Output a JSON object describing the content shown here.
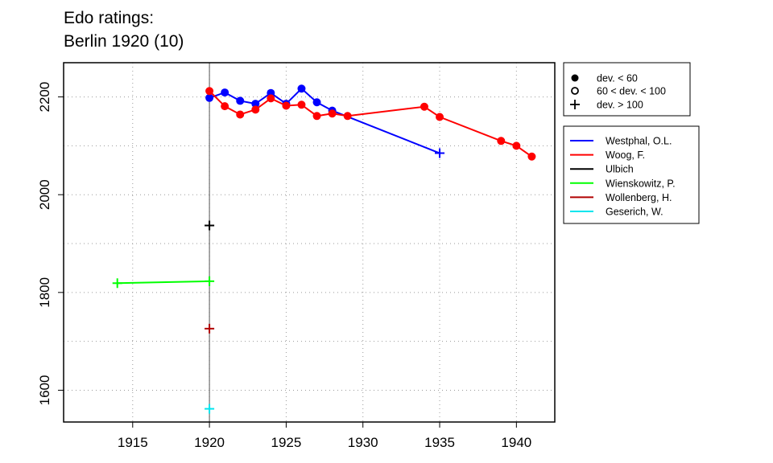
{
  "title": {
    "line1": "Edo ratings:",
    "line2": "Berlin 1920 (10)"
  },
  "symbol_legend": [
    {
      "symbol": "filled-circle",
      "label": "dev. < 60"
    },
    {
      "symbol": "open-circle",
      "label": "60 < dev. < 100"
    },
    {
      "symbol": "plus",
      "label": "dev. > 100"
    }
  ],
  "chart_data": {
    "type": "line",
    "title": "Edo ratings:\nBerlin 1920 (10)",
    "xlabel": "",
    "ylabel": "",
    "xlim": [
      1910.5,
      1942.5
    ],
    "ylim": [
      1535,
      2270
    ],
    "x_ticks": [
      1915,
      1920,
      1925,
      1930,
      1935,
      1940
    ],
    "y_ticks": [
      1600,
      1800,
      2000,
      2200
    ],
    "grid": true,
    "vertical_marker_x": 1920,
    "legend_position": "right",
    "series": [
      {
        "name": "Westphal, O.L.",
        "color": "#0000ff",
        "points": [
          [
            1920,
            2198,
            "filled"
          ],
          [
            1921,
            2209,
            "filled"
          ],
          [
            1922,
            2192,
            "filled"
          ],
          [
            1923,
            2186,
            "filled"
          ],
          [
            1924,
            2208,
            "filled"
          ],
          [
            1925,
            2186,
            "filled"
          ],
          [
            1926,
            2217,
            "filled"
          ],
          [
            1927,
            2189,
            "filled"
          ],
          [
            1928,
            2172,
            "filled"
          ],
          [
            1935,
            2085,
            "plus"
          ]
        ]
      },
      {
        "name": "Woog, F.",
        "color": "#ff0000",
        "points": [
          [
            1920,
            2212,
            "filled"
          ],
          [
            1921,
            2181,
            "filled"
          ],
          [
            1922,
            2164,
            "filled"
          ],
          [
            1923,
            2174,
            "filled"
          ],
          [
            1924,
            2197,
            "filled"
          ],
          [
            1925,
            2182,
            "filled"
          ],
          [
            1926,
            2184,
            "filled"
          ],
          [
            1927,
            2161,
            "filled"
          ],
          [
            1928,
            2166,
            "filled"
          ],
          [
            1929,
            2161,
            "filled"
          ],
          [
            1934,
            2180,
            "filled"
          ],
          [
            1935,
            2159,
            "filled"
          ],
          [
            1939,
            2110,
            "filled"
          ],
          [
            1940,
            2100,
            "filled"
          ],
          [
            1941,
            2078,
            "filled"
          ]
        ]
      },
      {
        "name": "Ulbich",
        "color": "#000000",
        "points": [
          [
            1920,
            1937,
            "plus"
          ]
        ]
      },
      {
        "name": "Wienskowitz, P.",
        "color": "#00ff00",
        "points": [
          [
            1914,
            1819,
            "plus"
          ],
          [
            1920,
            1823,
            "plus"
          ]
        ]
      },
      {
        "name": "Wollenberg, H.",
        "color": "#b00000",
        "points": [
          [
            1920,
            1726,
            "plus"
          ]
        ]
      },
      {
        "name": "Geserich, W.",
        "color": "#00e5ee",
        "points": [
          [
            1920,
            1562,
            "plus"
          ]
        ]
      }
    ]
  }
}
